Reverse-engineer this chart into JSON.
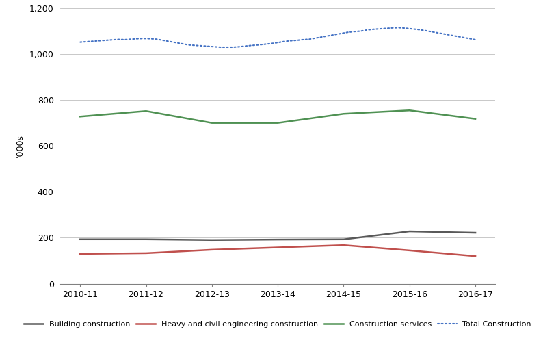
{
  "x_labels": [
    "2010-11",
    "2011-12",
    "2012-13",
    "2013-14",
    "2014-15",
    "2015-16",
    "2016-17"
  ],
  "building_construction": [
    193,
    193,
    190,
    192,
    193,
    228,
    222
  ],
  "heavy_civil": [
    130,
    133,
    148,
    158,
    168,
    145,
    120
  ],
  "construction_services": [
    728,
    752,
    700,
    700,
    740,
    755,
    718
  ],
  "total_construction_dense": [
    1052,
    1054,
    1056,
    1058,
    1060,
    1062,
    1064,
    1063,
    1065,
    1067,
    1068,
    1067,
    1065,
    1060,
    1055,
    1050,
    1045,
    1040,
    1038,
    1036,
    1034,
    1032,
    1030,
    1030,
    1030,
    1032,
    1035,
    1038,
    1040,
    1043,
    1046,
    1050,
    1055,
    1058,
    1060,
    1063,
    1065,
    1070,
    1075,
    1080,
    1085,
    1090,
    1095,
    1098,
    1100,
    1105,
    1108,
    1110,
    1112,
    1114,
    1115,
    1113,
    1110,
    1107,
    1103,
    1098,
    1093,
    1088,
    1083,
    1078,
    1073,
    1068,
    1063
  ],
  "ylabel": "'000s",
  "ylim": [
    0,
    1200
  ],
  "yticks": [
    0,
    200,
    400,
    600,
    800,
    1000,
    1200
  ],
  "line_colors": {
    "building": "#595959",
    "heavy_civil": "#C0504D",
    "services": "#4F9153",
    "total": "#4472C4"
  },
  "legend_labels": [
    "Building construction",
    "Heavy and civil engineering construction",
    "Construction services",
    "Total Construction"
  ]
}
